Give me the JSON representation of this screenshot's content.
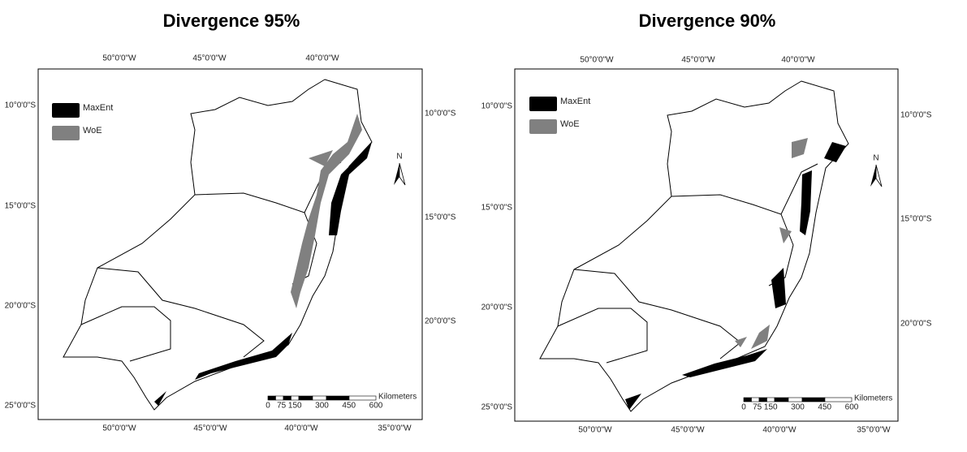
{
  "maps": [
    {
      "title": "Divergence 95%",
      "legend": [
        "MaxEnt",
        "WoE"
      ],
      "top_labels": [
        "50°0'0\"W",
        "45°0'0\"W",
        "40°0'0\"W"
      ],
      "bottom_labels": [
        "50°0'0\"W",
        "45°0'0\"W",
        "40°0'0\"W",
        "35°0'0\"W"
      ],
      "left_labels": [
        "10°0'0\"S",
        "15°0'0\"S",
        "20°0'0\"S",
        "25°0'0\"S"
      ],
      "right_labels": [
        "10°0'0\"S",
        "15°0'0\"S",
        "20°0'0\"S"
      ],
      "north": "N",
      "scale_labels": [
        "0",
        "75",
        "150",
        "300",
        "450",
        "600"
      ],
      "scale_unit": "Kilometers"
    },
    {
      "title": "Divergence 90%",
      "legend": [
        "MaxEnt",
        "WoE"
      ],
      "top_labels": [
        "50°0'0\"W",
        "45°0'0\"W",
        "40°0'0\"W"
      ],
      "bottom_labels": [
        "50°0'0\"W",
        "45°0'0\"W",
        "40°0'0\"W",
        "35°0'0\"W"
      ],
      "left_labels": [
        "10°0'0\"S",
        "15°0'0\"S",
        "20°0'0\"S",
        "25°0'0\"S"
      ],
      "right_labels": [
        "10°0'0\"S",
        "15°0'0\"S",
        "20°0'0\"S"
      ],
      "north": "N",
      "scale_labels": [
        "0",
        "75",
        "150",
        "300",
        "450",
        "600"
      ],
      "scale_unit": "Kilometers"
    }
  ]
}
